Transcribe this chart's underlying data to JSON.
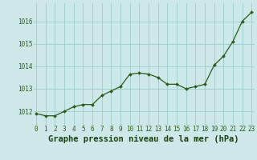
{
  "hours": [
    0,
    1,
    2,
    3,
    4,
    5,
    6,
    7,
    8,
    9,
    10,
    11,
    12,
    13,
    14,
    15,
    16,
    17,
    18,
    19,
    20,
    21,
    22,
    23
  ],
  "pressure": [
    1011.9,
    1011.8,
    1011.8,
    1012.0,
    1012.2,
    1012.3,
    1012.3,
    1012.7,
    1012.9,
    1013.1,
    1013.65,
    1013.7,
    1013.65,
    1013.5,
    1013.2,
    1013.2,
    1013.0,
    1013.1,
    1013.2,
    1014.05,
    1014.45,
    1015.1,
    1016.0,
    1016.4
  ],
  "line_color": "#2d5a1b",
  "marker_color": "#2d5a1b",
  "bg_color": "#cce8e8",
  "grid_color": "#99cccc",
  "xlabel": "Graphe pression niveau de la mer (hPa)",
  "xlabel_color": "#1a4010",
  "ylabel_ticks": [
    1012,
    1013,
    1014,
    1015,
    1016
  ],
  "ylim": [
    1011.4,
    1016.8
  ],
  "xlim": [
    -0.3,
    23.3
  ],
  "tick_color": "#2d5a1b",
  "tick_fontsize": 5.5,
  "xlabel_fontsize": 7.5,
  "marker_size": 2.0,
  "linewidth": 0.9
}
